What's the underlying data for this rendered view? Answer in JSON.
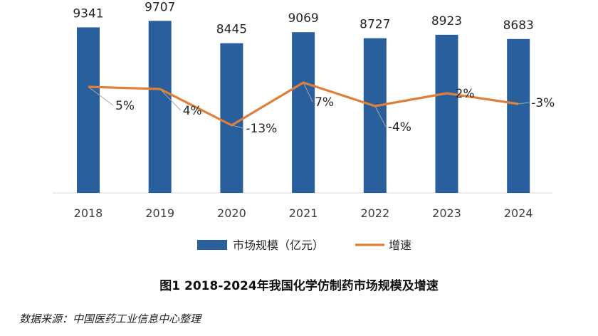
{
  "chart_data": {
    "type": "bar",
    "categories": [
      "2018",
      "2019",
      "2020",
      "2021",
      "2022",
      "2023",
      "2024"
    ],
    "series": [
      {
        "name": "市场规模（亿元）",
        "kind": "bar",
        "values": [
          9341,
          9707,
          8445,
          9069,
          8727,
          8923,
          8683
        ]
      },
      {
        "name": "增速",
        "kind": "line",
        "axis": "secondary",
        "values": [
          5,
          4,
          -13,
          7,
          -4,
          2,
          -3
        ]
      }
    ],
    "growth_labels": [
      "5%",
      "4%",
      "-13%",
      "7%",
      "-4%",
      "2%",
      "-3%"
    ],
    "ylim": [
      0,
      10000
    ],
    "y2lim": [
      -30,
      20
    ],
    "title": "图1 2018-2024年我国化学仿制药市场规模及增速",
    "legend": [
      "市场规模（亿元）",
      "增速"
    ],
    "legend_position": "bottom",
    "grid": false,
    "colors": {
      "bar": "#2a5f9e",
      "line": "#e07f3a",
      "leader": "#a6a6a6"
    }
  },
  "caption": "图1 2018-2024年我国化学仿制药市场规模及增速",
  "source": "数据来源：中国医药工业信息中心整理"
}
